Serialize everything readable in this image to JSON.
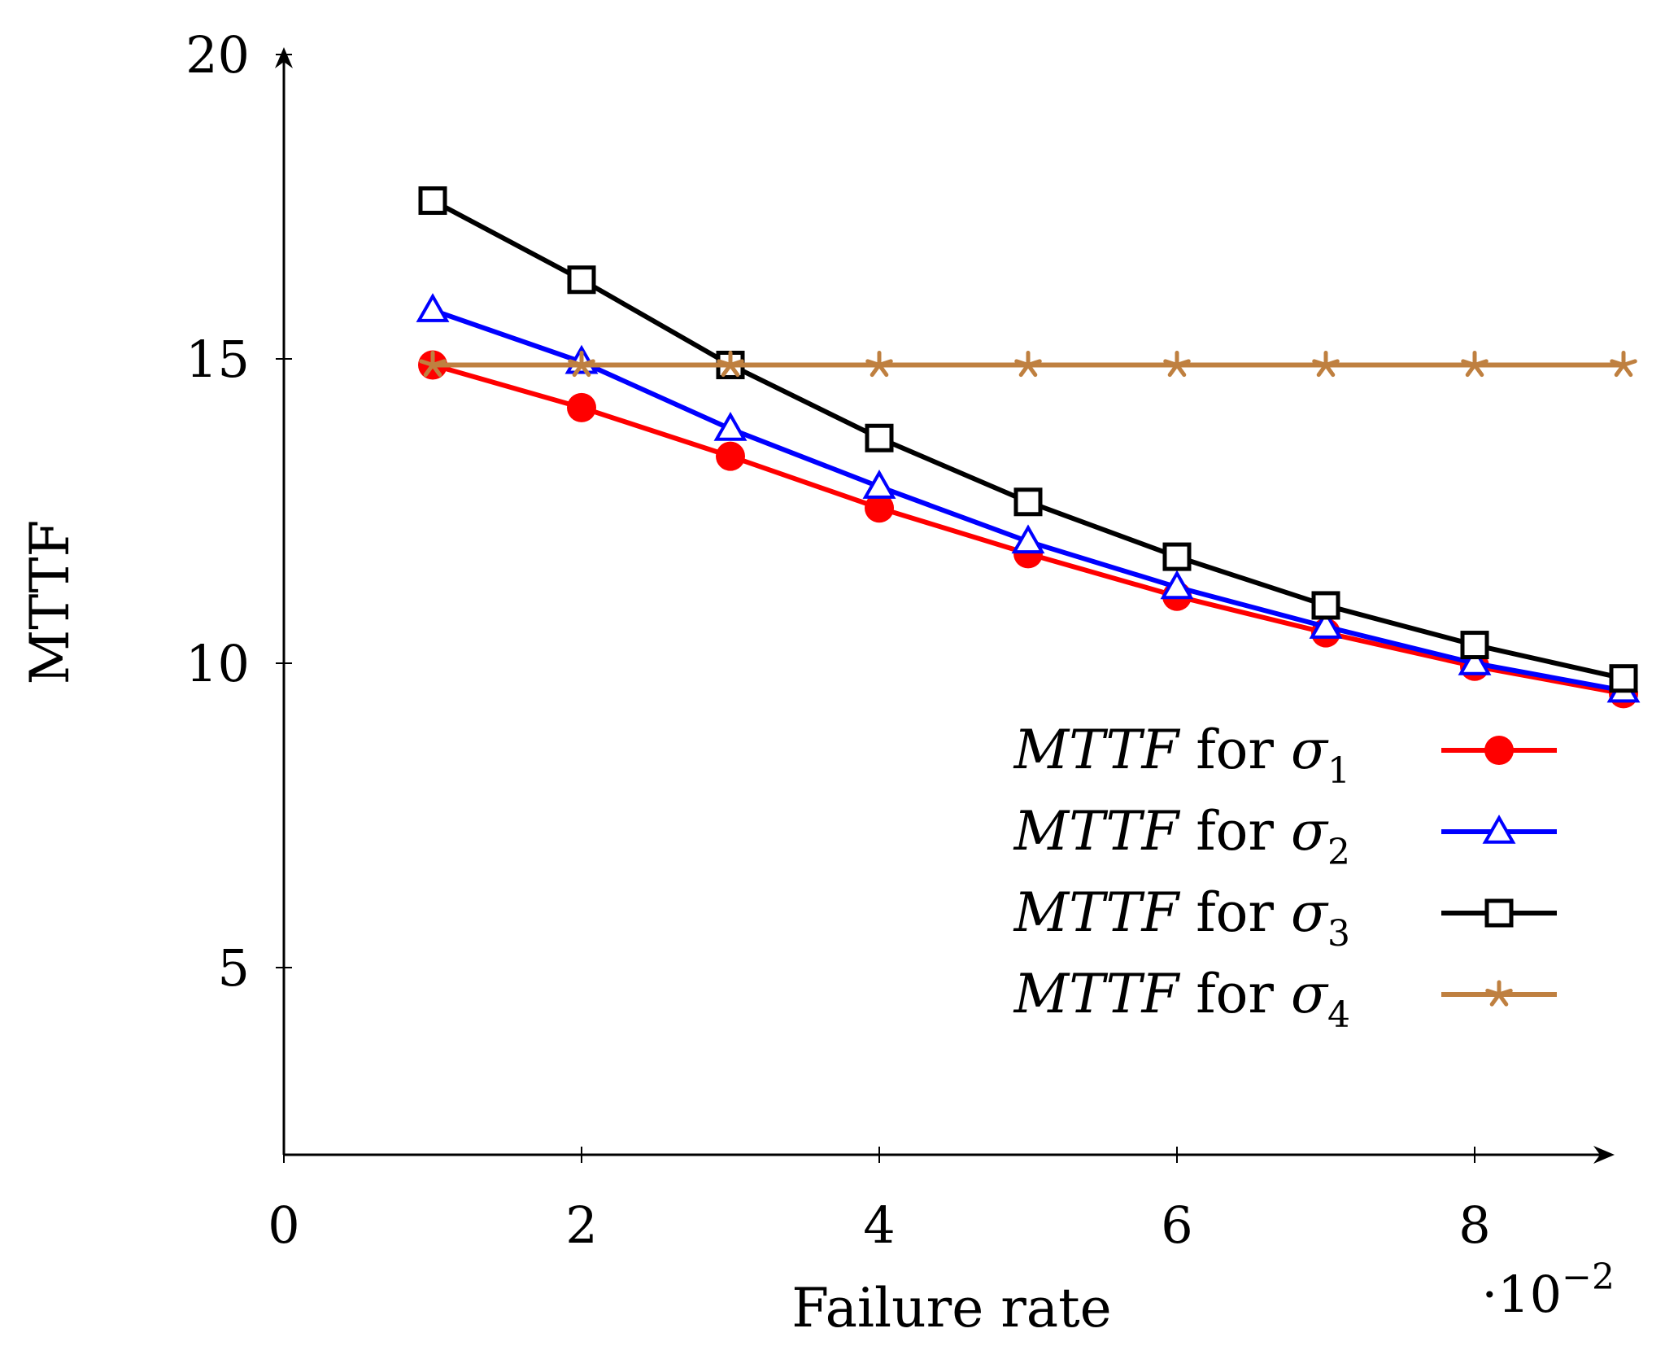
{
  "chart_data": {
    "type": "line",
    "title": "",
    "xlabel": "Failure rate",
    "ylabel": "MTTF",
    "x_scale_note": {
      "prefix": "·10",
      "exponent": "−2"
    },
    "xlim": [
      0,
      9
    ],
    "ylim": [
      2,
      20
    ],
    "x_ticks": [
      0,
      2,
      4,
      6,
      8
    ],
    "y_ticks": [
      5,
      10,
      15,
      20
    ],
    "x_tick_labels": [
      "0",
      "2",
      "4",
      "6",
      "8"
    ],
    "y_tick_labels": [
      "5",
      "10",
      "15",
      "20"
    ],
    "grid": false,
    "legend_position": "right",
    "x": [
      1,
      2,
      3,
      4,
      5,
      6,
      7,
      8,
      9
    ],
    "series": [
      {
        "name": "MTTF for σ1",
        "italic": "MTTF",
        "word": "for",
        "symbol": "σ",
        "sub": "1",
        "color": "#ff0000",
        "marker": "circle",
        "values": [
          14.9,
          14.2,
          13.4,
          12.55,
          11.8,
          11.1,
          10.5,
          9.95,
          9.5
        ]
      },
      {
        "name": "MTTF for σ2",
        "italic": "MTTF",
        "word": "for",
        "symbol": "σ",
        "sub": "2",
        "color": "#0000ff",
        "marker": "triangle",
        "values": [
          15.8,
          14.95,
          13.85,
          12.9,
          12.0,
          11.25,
          10.6,
          10.0,
          9.55
        ]
      },
      {
        "name": "MTTF for σ3",
        "italic": "MTTF",
        "word": "for",
        "symbol": "σ",
        "sub": "3",
        "color": "#000000",
        "marker": "square",
        "values": [
          17.6,
          16.3,
          14.9,
          13.7,
          12.65,
          11.75,
          10.95,
          10.3,
          9.75
        ]
      },
      {
        "name": "MTTF for σ4",
        "italic": "MTTF",
        "word": "for",
        "symbol": "σ",
        "sub": "4",
        "color": "#bf8040",
        "marker": "star",
        "values": [
          14.9,
          14.9,
          14.9,
          14.9,
          14.9,
          14.9,
          14.9,
          14.9,
          14.9
        ]
      }
    ]
  }
}
